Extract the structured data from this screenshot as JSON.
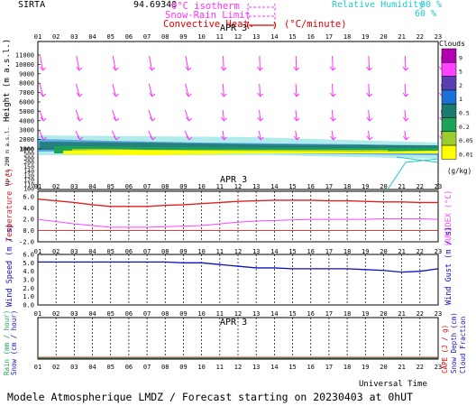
{
  "header": {
    "station": "SIRTA",
    "coord": "94.69340",
    "legend_iso": "0°C isotherm",
    "legend_snow": "Snow-Rain Limit",
    "legend_conv": "Convective Heat.",
    "legend_unit": "(°C/minute)",
    "rh_label": "Relative Humidity",
    "rh_90": "90 %",
    "rh_60": "60 %"
  },
  "hours": [
    "01",
    "02",
    "03",
    "04",
    "05",
    "06",
    "07",
    "08",
    "09",
    "10",
    "11",
    "12",
    "13",
    "14",
    "15",
    "16",
    "17",
    "18",
    "19",
    "20",
    "21",
    "22",
    "23"
  ],
  "date_label": "APR  3",
  "clouds": {
    "title": "Clouds",
    "levels": [
      "9",
      "5",
      "2",
      "1",
      "0.5",
      "0.2",
      "0.05",
      "0.01"
    ],
    "colors": [
      "#b000b0",
      "#ff44ff",
      "#5a3fb0",
      "#1c6fd4",
      "#1a7a6e",
      "#1ca35a",
      "#9acd32",
      "#ffff00"
    ],
    "unit": "(g/kg)"
  },
  "height_axis": {
    "ylabel": "Height  (m a.s.l.)",
    "ylabel_low": "Up to 200 m a.s.l.",
    "upper_ticks": [
      "11000",
      "10000",
      "9000",
      "8000",
      "7000",
      "6000",
      "5000",
      "4000",
      "3000",
      "2000",
      "1000"
    ],
    "lower_ticks": [
      "1000",
      "500",
      "300",
      "200",
      "150",
      "140",
      "130",
      "120",
      "110",
      "100"
    ]
  },
  "temp_axis": {
    "ylabel": "Temperature (°C)",
    "ylabel_right": "HUMIDEX (°C)",
    "ticks": [
      "6.0",
      "4.0",
      "2.0",
      "0.0",
      "-2.0"
    ]
  },
  "wind_axis": {
    "ylabel": "Wind Speed (m / s)",
    "ylabel_right": "Wind Gust (m / s)",
    "ticks": [
      "6.0",
      "5.0",
      "4.0",
      "3.0",
      "2.0",
      "1.0",
      "0.0"
    ]
  },
  "precip_axis": {
    "ylabel_rain": "Rain (mm / hour)",
    "ylabel_snow": "Snow (cm / hour)",
    "ylabel_cape": "CAPE (J / g)",
    "ylabel_snowdepth": "Snow Depth (cm)",
    "ylabel_cloudfrac": "Cloud Fraction"
  },
  "footer": {
    "universal_time": "Universal Time",
    "caption": "Modele Atmospherique LMDZ / Forecast starting on 20230403 at 0hUT"
  },
  "colors": {
    "temperature": "#e02020",
    "humidex": "#ff44ff",
    "wind": "#1010c0",
    "rh_label": "#20c8c8",
    "arrows": "#ff33ff",
    "conv": "#e00000"
  },
  "chart_data": [
    {
      "type": "line",
      "panel": "temperature",
      "x": [
        "01",
        "02",
        "03",
        "04",
        "05",
        "06",
        "07",
        "08",
        "09",
        "10",
        "11",
        "12",
        "13",
        "14",
        "15",
        "16",
        "17",
        "18",
        "19",
        "20",
        "21",
        "22",
        "23"
      ],
      "ylim": [
        -2,
        7
      ],
      "series": [
        {
          "name": "Temperature",
          "values": [
            5.6,
            5.3,
            5.0,
            4.6,
            4.3,
            4.3,
            4.3,
            4.5,
            4.6,
            4.8,
            5.0,
            5.2,
            5.3,
            5.4,
            5.4,
            5.4,
            5.3,
            5.3,
            5.2,
            5.1,
            5.1,
            5.0,
            5.0
          ]
        },
        {
          "name": "HUMIDEX",
          "values": [
            2.0,
            1.6,
            1.2,
            0.9,
            0.6,
            0.6,
            0.6,
            0.7,
            0.8,
            0.9,
            1.2,
            1.5,
            1.7,
            1.8,
            1.9,
            2.0,
            2.0,
            2.0,
            2.0,
            2.1,
            2.1,
            2.1,
            2.0
          ]
        }
      ]
    },
    {
      "type": "line",
      "panel": "wind",
      "x": [
        "01",
        "02",
        "03",
        "04",
        "05",
        "06",
        "07",
        "08",
        "09",
        "10",
        "11",
        "12",
        "13",
        "14",
        "15",
        "16",
        "17",
        "18",
        "19",
        "20",
        "21",
        "22",
        "23"
      ],
      "ylim": [
        0,
        6
      ],
      "series": [
        {
          "name": "Wind Speed",
          "values": [
            5.1,
            5.1,
            5.1,
            5.1,
            5.1,
            5.1,
            5.1,
            5.1,
            5.0,
            5.0,
            4.8,
            4.6,
            4.4,
            4.4,
            4.3,
            4.3,
            4.3,
            4.3,
            4.2,
            4.1,
            3.9,
            4.0,
            4.3
          ]
        }
      ]
    },
    {
      "type": "line",
      "panel": "precipitation",
      "x": [
        "01",
        "02",
        "03",
        "04",
        "05",
        "06",
        "07",
        "08",
        "09",
        "10",
        "11",
        "12",
        "13",
        "14",
        "15",
        "16",
        "17",
        "18",
        "19",
        "20",
        "21",
        "22",
        "23"
      ],
      "ylim": [
        0,
        1
      ],
      "series": [
        {
          "name": "Rain",
          "values": [
            0,
            0,
            0,
            0,
            0,
            0,
            0,
            0,
            0,
            0,
            0,
            0,
            0,
            0,
            0,
            0,
            0,
            0,
            0,
            0,
            0,
            0,
            0
          ]
        }
      ]
    }
  ]
}
